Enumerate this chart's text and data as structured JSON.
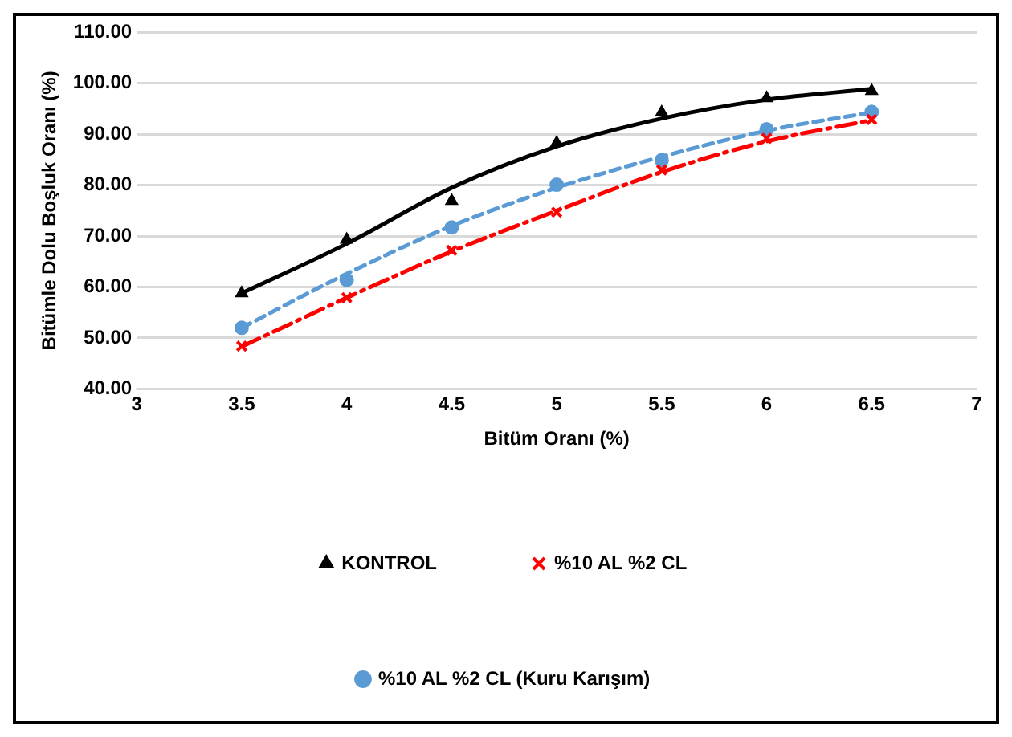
{
  "chart_data": {
    "type": "scatter",
    "xlabel": "Bitüm Oranı (%)",
    "ylabel": "Bitümle Dolu Boşluk Oranı (%)",
    "x": [
      3.5,
      4,
      4.5,
      5,
      5.5,
      6,
      6.5
    ],
    "series": [
      {
        "name": "KONTROL",
        "color": "#000000",
        "marker": "triangle",
        "values": [
          58.8,
          69.3,
          76.9,
          88.3,
          94.3,
          97.1,
          98.5
        ]
      },
      {
        "name": "%10 AL %2 CL",
        "color": "#ff0000",
        "marker": "cross",
        "values": [
          48.4,
          57.9,
          67.2,
          74.7,
          83.0,
          89.2,
          92.9
        ]
      },
      {
        "name": "%10 AL %2 CL (Kuru Karışım)",
        "color": "#5b9bd5",
        "marker": "circle",
        "values": [
          52.0,
          61.4,
          71.7,
          80.1,
          84.9,
          91.0,
          94.4
        ]
      },
      {
        "type": "line",
        "color": "#000000",
        "line_style": "solid",
        "marker": "none",
        "x": [
          3.5,
          4,
          4.5,
          5,
          5.5,
          6,
          6.5
        ],
        "values": [
          58.8,
          68.5,
          79.5,
          87.6,
          93.1,
          96.8,
          98.9
        ]
      },
      {
        "type": "line",
        "color": "#ff0000",
        "line_style": "dashed",
        "marker": "none",
        "x": [
          3.5,
          4,
          4.5,
          5,
          5.5,
          6,
          6.5
        ],
        "values": [
          48.3,
          57.9,
          67.0,
          75.0,
          82.6,
          88.6,
          92.8
        ]
      },
      {
        "type": "line",
        "color": "#5b9bd5",
        "line_style": "dotted",
        "marker": "none",
        "x": [
          3.5,
          4,
          4.5,
          5,
          5.5,
          6,
          6.5
        ],
        "values": [
          52.0,
          62.6,
          72.0,
          79.5,
          85.6,
          90.7,
          94.3
        ]
      }
    ],
    "xlim": [
      3,
      7
    ],
    "xticks": [
      3,
      3.5,
      4,
      4.5,
      5,
      5.5,
      6,
      6.5,
      7
    ],
    "ylim": [
      40,
      110
    ],
    "yticks": [
      {
        "value": 40,
        "label": "40.00"
      },
      {
        "value": 50,
        "label": "50.00"
      },
      {
        "value": 60,
        "label": "60.00"
      },
      {
        "value": 70,
        "label": "70.00"
      },
      {
        "value": 80,
        "label": "80.00"
      },
      {
        "value": 90,
        "label": "90.00"
      },
      {
        "value": 100,
        "label": "100.00"
      },
      {
        "value": 110,
        "label": "110.00"
      }
    ],
    "grid": "y",
    "legend": "bottom"
  }
}
